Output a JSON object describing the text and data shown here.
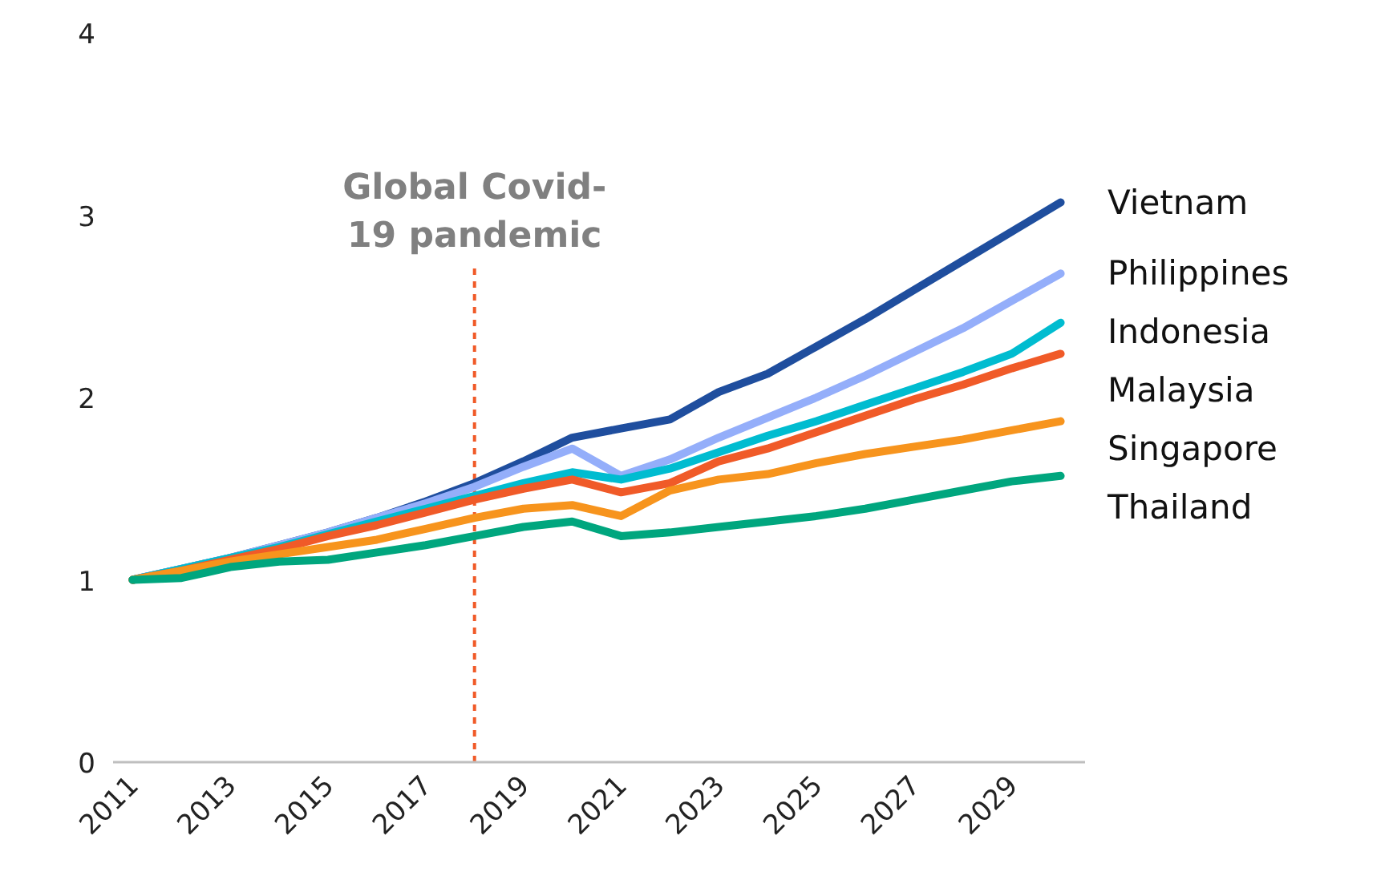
{
  "chart_data": {
    "type": "line",
    "x": [
      2011,
      2012,
      2013,
      2014,
      2015,
      2016,
      2017,
      2018,
      2019,
      2020,
      2021,
      2022,
      2023,
      2024,
      2025,
      2026,
      2027,
      2028,
      2029,
      2030
    ],
    "series": [
      {
        "name": "Vietnam",
        "color": "#1f4e9e",
        "values": [
          1.0,
          1.06,
          1.12,
          1.19,
          1.26,
          1.34,
          1.43,
          1.53,
          1.65,
          1.78,
          1.83,
          1.88,
          2.03,
          2.13,
          2.28,
          2.43,
          2.59,
          2.75,
          2.91,
          3.07
        ]
      },
      {
        "name": "Philippines",
        "color": "#94aefa",
        "values": [
          1.0,
          1.06,
          1.12,
          1.19,
          1.26,
          1.34,
          1.42,
          1.51,
          1.62,
          1.72,
          1.57,
          1.66,
          1.78,
          1.89,
          2.0,
          2.12,
          2.25,
          2.38,
          2.53,
          2.68
        ]
      },
      {
        "name": "Indonesia",
        "color": "#00bcd0",
        "values": [
          1.0,
          1.06,
          1.12,
          1.18,
          1.25,
          1.32,
          1.39,
          1.46,
          1.53,
          1.59,
          1.55,
          1.61,
          1.7,
          1.79,
          1.87,
          1.96,
          2.05,
          2.14,
          2.24,
          2.41
        ]
      },
      {
        "name": "Malaysia",
        "color": "#f05a28",
        "values": [
          1.0,
          1.05,
          1.11,
          1.17,
          1.24,
          1.3,
          1.37,
          1.44,
          1.5,
          1.55,
          1.48,
          1.53,
          1.65,
          1.72,
          1.81,
          1.9,
          1.99,
          2.07,
          2.16,
          2.24
        ]
      },
      {
        "name": "Singapore",
        "color": "#f7941d",
        "values": [
          1.0,
          1.05,
          1.1,
          1.14,
          1.18,
          1.22,
          1.28,
          1.34,
          1.39,
          1.41,
          1.35,
          1.49,
          1.55,
          1.58,
          1.64,
          1.69,
          1.73,
          1.77,
          1.82,
          1.87
        ]
      },
      {
        "name": "Thailand",
        "color": "#00a67e",
        "values": [
          1.0,
          1.01,
          1.07,
          1.1,
          1.11,
          1.15,
          1.19,
          1.24,
          1.29,
          1.32,
          1.24,
          1.26,
          1.29,
          1.32,
          1.35,
          1.39,
          1.44,
          1.49,
          1.54,
          1.57
        ]
      }
    ],
    "xlim": [
      2010.6,
      2030.5
    ],
    "xticks": [
      2011,
      2013,
      2015,
      2017,
      2019,
      2021,
      2023,
      2025,
      2027,
      2029
    ],
    "ylim": [
      0,
      4
    ],
    "yticks": [
      0,
      1,
      2,
      3,
      4
    ],
    "grid": false,
    "legend": false,
    "ref_lines": [
      {
        "axis": "x",
        "value": 2018,
        "label": "Global Covid-\n19 pandemic",
        "color": "#f05a28",
        "line_style": "dashed"
      }
    ]
  }
}
